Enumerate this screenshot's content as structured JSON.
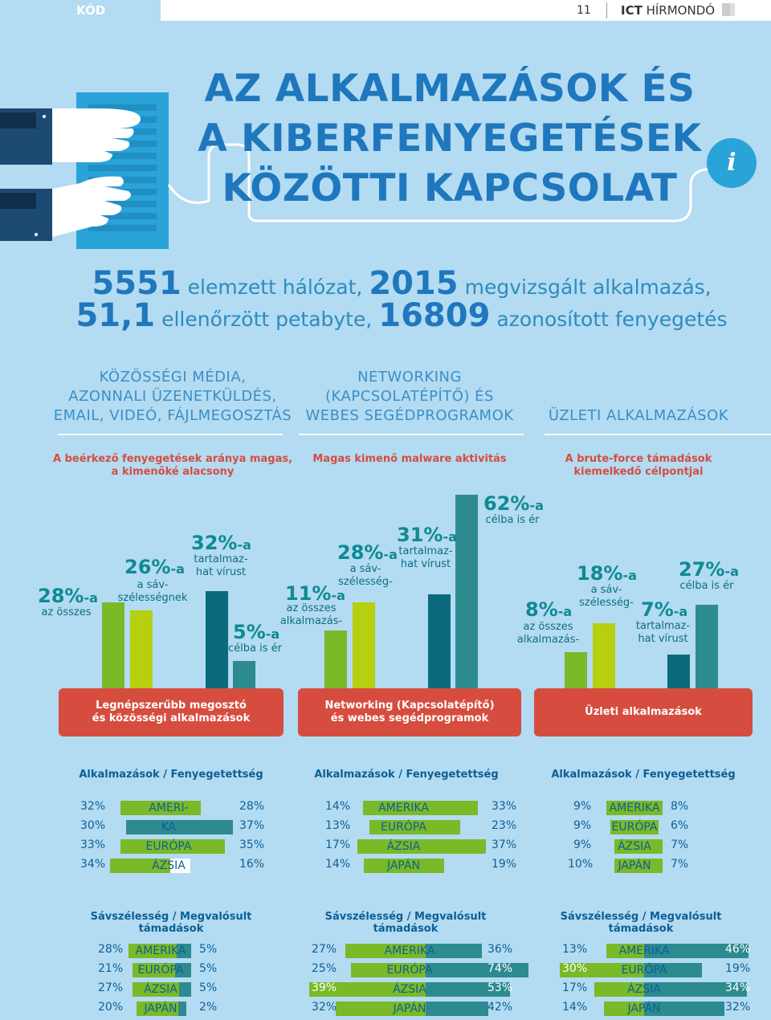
{
  "header": {
    "section": "KÓD",
    "page": "11",
    "publication_bold": "ICT",
    "publication": " HÍRMONDÓ"
  },
  "title": {
    "line1": "AZ ALKALMAZÁSOK ÉS",
    "line2": "A KIBERFENYEGETÉSEK",
    "line3": "KÖZÖTTI KAPCSOLAT"
  },
  "info_icon": "i",
  "stats": {
    "n1": "5551",
    "t1": " elemzett hálózat, ",
    "n2": "2015",
    "t2": " megvizsgált alkalmazás,",
    "n3": "51,1",
    "t3": " ellenőrzött petabyte, ",
    "n4": "16809",
    "t4": " azonosított fenyegetés"
  },
  "categories": [
    {
      "l1": "KÖZÖSSÉGI MÉDIA,",
      "l2": "AZONNALI ÜZENETKÜLDÉS,",
      "l3": "EMAIL, VIDEÓ, FÁJLMEGOSZTÁS",
      "sub1": "A beérkező fenyegetések aránya magas,",
      "sub2": "a kimenőké alacsony"
    },
    {
      "l1": "NETWORKING",
      "l2": "(KAPCSOLATÉPÍTŐ) ÉS",
      "l3": "WEBES SEGÉDPROGRAMOK",
      "sub1": "Magas kimenő malware aktivitás",
      "sub2": ""
    },
    {
      "l1": "ÜZLETI ALKALMAZÁSOK",
      "sub1": "A brute-force támadások",
      "sub2": "kiemelkedő célpontjai"
    }
  ],
  "chart_data": [
    {
      "type": "bar",
      "series": [
        {
          "name": "az összes",
          "value": 28
        },
        {
          "name": "a sávszélességnek",
          "value": 26
        },
        {
          "name": "tartalmazhat vírust",
          "value": 32
        },
        {
          "name": "célba is ér",
          "value": 5
        }
      ]
    },
    {
      "type": "bar",
      "series": [
        {
          "name": "az összes alkalmazás-",
          "value": 11
        },
        {
          "name": "a sávszélesség-",
          "value": 28
        },
        {
          "name": "tartalmazhat vírust",
          "value": 31
        },
        {
          "name": "célba is ér",
          "value": 62
        }
      ]
    },
    {
      "type": "bar",
      "series": [
        {
          "name": "az összes alkalmazás-",
          "value": 8
        },
        {
          "name": "a sávszélesség-",
          "value": 18
        },
        {
          "name": "tartalmazhat vírust",
          "value": 7
        },
        {
          "name": "célba is ér",
          "value": 27
        }
      ]
    }
  ],
  "bars": {
    "g1": {
      "p1": "28%",
      "p1s": "-a",
      "d1": "az összes",
      "p2": "26%",
      "p2s": "-a",
      "d2a": "a sáv-",
      "d2b": "szélességnek",
      "p3": "32%",
      "p3s": "-a",
      "d3a": "tartalmaz-",
      "d3b": "hat vírust",
      "p4": "5%",
      "p4s": "-a",
      "d4": "célba is ér"
    },
    "g2": {
      "p1": "11%",
      "p1s": "-a",
      "d1a": "az összes",
      "d1b": "alkalmazás-",
      "p2": "28%",
      "p2s": "-a",
      "d2a": "a sáv-",
      "d2b": "szélesség-",
      "p3": "31%",
      "p3s": "-a",
      "d3a": "tartalmaz-",
      "d3b": "hat vírust",
      "p4": "62%",
      "p4s": "-a",
      "d4": "célba is ér"
    },
    "g3": {
      "p1": "8%",
      "p1s": "-a",
      "d1a": "az összes",
      "d1b": "alkalmazás-",
      "p2": "18%",
      "p2s": "-a",
      "d2a": "a sáv-",
      "d2b": "szélesség-",
      "p3": "7%",
      "p3s": "-a",
      "d3a": "tartalmaz-",
      "d3b": "hat vírust",
      "p4": "27%",
      "p4s": "-a",
      "d4": "célba is ér"
    }
  },
  "banners": [
    {
      "l1": "Legnépszerűbb megosztó",
      "l2": "és közösségi alkalmazások"
    },
    {
      "l1": "Networking (Kapcsolatépítő)",
      "l2": "és webes segédprogramok"
    },
    {
      "l1": "Üzleti alkalmazások",
      "l2": ""
    }
  ],
  "table1_header": "Alkalmazások / Fenyegetettség",
  "table2_header": "Sávszélesség / Megvalósult támadások",
  "regions": {
    "americas_a": "AMERI-",
    "americas_b": "KA",
    "americas": "AMERIKA",
    "europe": "EURÓPA",
    "asia": "ÁZSIA",
    "japan": "JAPÁN"
  },
  "t1": [
    {
      "l": [
        "32%",
        "30%",
        "33%",
        "34%"
      ],
      "r": [
        "28%",
        "37%",
        "35%",
        "16%"
      ]
    },
    {
      "l": [
        "14%",
        "13%",
        "17%",
        "14%"
      ],
      "r": [
        "33%",
        "23%",
        "37%",
        "19%"
      ]
    },
    {
      "l": [
        "9%",
        "9%",
        "9%",
        "10%"
      ],
      "r": [
        "8%",
        "6%",
        "7%",
        "7%"
      ]
    }
  ],
  "t2": [
    {
      "l": [
        "28%",
        "21%",
        "27%",
        "20%"
      ],
      "r": [
        "5%",
        "5%",
        "5%",
        "2%"
      ]
    },
    {
      "l": [
        "27%",
        "25%",
        "39%",
        "32%"
      ],
      "r": [
        "36%",
        "74%",
        "53%",
        "42%"
      ]
    },
    {
      "l": [
        "13%",
        "30%",
        "17%",
        "14%"
      ],
      "r": [
        "46%",
        "19%",
        "34%",
        "32%"
      ]
    }
  ],
  "colors": {
    "green": "#7ab928",
    "lime": "#b6cf0e",
    "darkteal": "#0a6b7c",
    "teal": "#2d8b8f",
    "red": "#d64d3f",
    "title": "#1f77bd"
  }
}
